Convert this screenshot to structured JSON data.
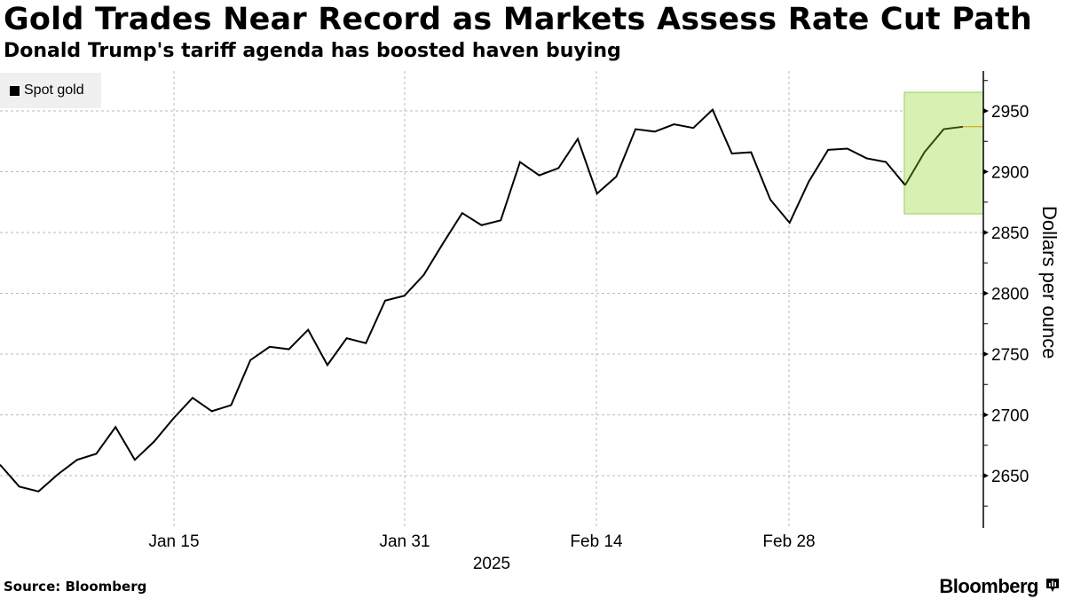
{
  "header": {
    "title": "Gold Trades Near Record as Markets Assess Rate Cut Path",
    "subtitle": "Donald Trump's tariff agenda has boosted haven buying"
  },
  "legend": {
    "items": [
      {
        "label": "Spot gold",
        "color": "#000000"
      }
    ]
  },
  "footer": {
    "source": "Source: Bloomberg",
    "brand": "Bloomberg",
    "brand_icon": "bloomberg-chart-icon"
  },
  "colors": {
    "line": "#000000",
    "highlight_fill": "#d9f0b3",
    "highlight_border": "#9ccc5a",
    "highlight_line": "#2e4d12",
    "last_value_line": "#c8a000",
    "grid": "#bbbbbb"
  },
  "chart_data": {
    "type": "line",
    "title": "Gold Trades Near Record as Markets Assess Rate Cut Path",
    "subtitle": "Donald Trump's tariff agenda has boosted haven buying",
    "xlabel": "2025",
    "ylabel": "Dollars per ounce",
    "ylim": [
      2608,
      2983
    ],
    "y_ticks": [
      2650,
      2700,
      2750,
      2800,
      2850,
      2900,
      2950
    ],
    "x_tick_labels": [
      "Jan 15",
      "Jan 31",
      "Feb 14",
      "Feb 28"
    ],
    "x_year_label": "2025",
    "grid": true,
    "legend_position": "top-left",
    "highlight_region": {
      "x_start_index": 47,
      "x_end_index": 50,
      "y_range": [
        2865,
        2965
      ]
    },
    "series": [
      {
        "name": "Spot gold",
        "values": [
          2659,
          2641,
          2637,
          2651,
          2663,
          2668,
          2690,
          2663,
          2678,
          2697,
          2714,
          2703,
          2708,
          2745,
          2756,
          2754,
          2770,
          2741,
          2763,
          2759,
          2794,
          2798,
          2815,
          2841,
          2866,
          2856,
          2860,
          2908,
          2897,
          2903,
          2927,
          2882,
          2896,
          2935,
          2933,
          2939,
          2936,
          2951,
          2915,
          2916,
          2877,
          2858,
          2892,
          2918,
          2919,
          2911,
          2908,
          2889,
          2916,
          2935,
          2937
        ]
      }
    ]
  }
}
